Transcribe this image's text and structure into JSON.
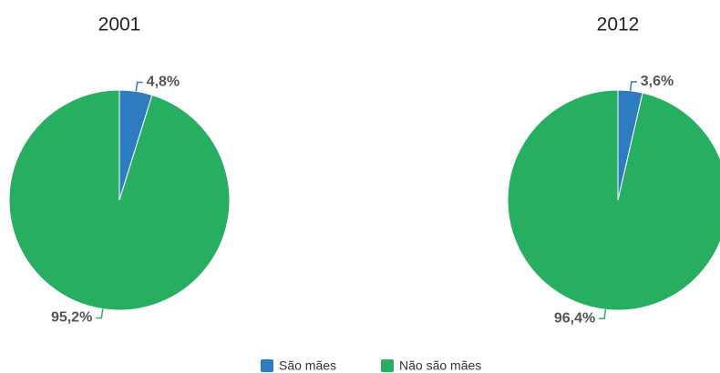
{
  "chart_data": [
    {
      "type": "pie",
      "title": "2001",
      "values": [
        4.8,
        95.2
      ],
      "value_labels": [
        "4,8%",
        "95,2%"
      ]
    },
    {
      "type": "pie",
      "title": "2012",
      "values": [
        3.6,
        96.4
      ],
      "value_labels": [
        "3,6%",
        "96,4%"
      ]
    }
  ],
  "legend": {
    "labels": [
      "São mães",
      "Não são mães"
    ],
    "colors": [
      "#2e7bbf",
      "#27ae60"
    ]
  }
}
